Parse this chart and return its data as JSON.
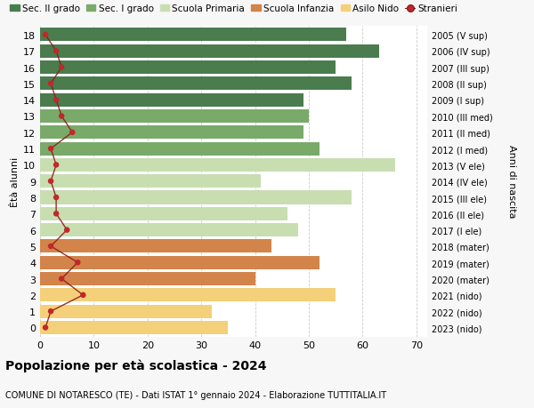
{
  "ages": [
    18,
    17,
    16,
    15,
    14,
    13,
    12,
    11,
    10,
    9,
    8,
    7,
    6,
    5,
    4,
    3,
    2,
    1,
    0
  ],
  "years": [
    "2005 (V sup)",
    "2006 (IV sup)",
    "2007 (III sup)",
    "2008 (II sup)",
    "2009 (I sup)",
    "2010 (III med)",
    "2011 (II med)",
    "2012 (I med)",
    "2013 (V ele)",
    "2014 (IV ele)",
    "2015 (III ele)",
    "2016 (II ele)",
    "2017 (I ele)",
    "2018 (mater)",
    "2019 (mater)",
    "2020 (mater)",
    "2021 (nido)",
    "2022 (nido)",
    "2023 (nido)"
  ],
  "bar_values": [
    57,
    63,
    55,
    58,
    49,
    50,
    49,
    52,
    66,
    41,
    58,
    46,
    48,
    43,
    52,
    40,
    55,
    32,
    35
  ],
  "bar_colors": [
    "#4a7c4e",
    "#4a7c4e",
    "#4a7c4e",
    "#4a7c4e",
    "#4a7c4e",
    "#7aaa6a",
    "#7aaa6a",
    "#7aaa6a",
    "#c8deb0",
    "#c8deb0",
    "#c8deb0",
    "#c8deb0",
    "#c8deb0",
    "#d2844a",
    "#d2844a",
    "#d2844a",
    "#f5d07a",
    "#f5d07a",
    "#f5d07a"
  ],
  "stranieri_values": [
    1,
    3,
    4,
    2,
    3,
    4,
    6,
    2,
    3,
    2,
    3,
    3,
    5,
    2,
    7,
    4,
    8,
    2,
    1
  ],
  "title_bold": "Popolazione per età scolastica - 2024",
  "subtitle": "COMUNE DI NOTARESCO (TE) - Dati ISTAT 1° gennaio 2024 - Elaborazione TUTTITALIA.IT",
  "ylabel": "Ètà alunni",
  "ylabel2": "Anni di nascita",
  "xlim": [
    0,
    72
  ],
  "xticks": [
    0,
    10,
    20,
    30,
    40,
    50,
    60,
    70
  ],
  "legend_labels": [
    "Sec. II grado",
    "Sec. I grado",
    "Scuola Primaria",
    "Scuola Infanzia",
    "Asilo Nido",
    "Stranieri"
  ],
  "legend_colors": [
    "#4a7c4e",
    "#7aaa6a",
    "#c8deb0",
    "#d2844a",
    "#f5d07a",
    "#c0282a"
  ],
  "bg_color": "#f7f7f7",
  "plot_bg_color": "#ffffff",
  "stranieri_color": "#c0282a",
  "stranieri_line_color": "#8b1a1a"
}
